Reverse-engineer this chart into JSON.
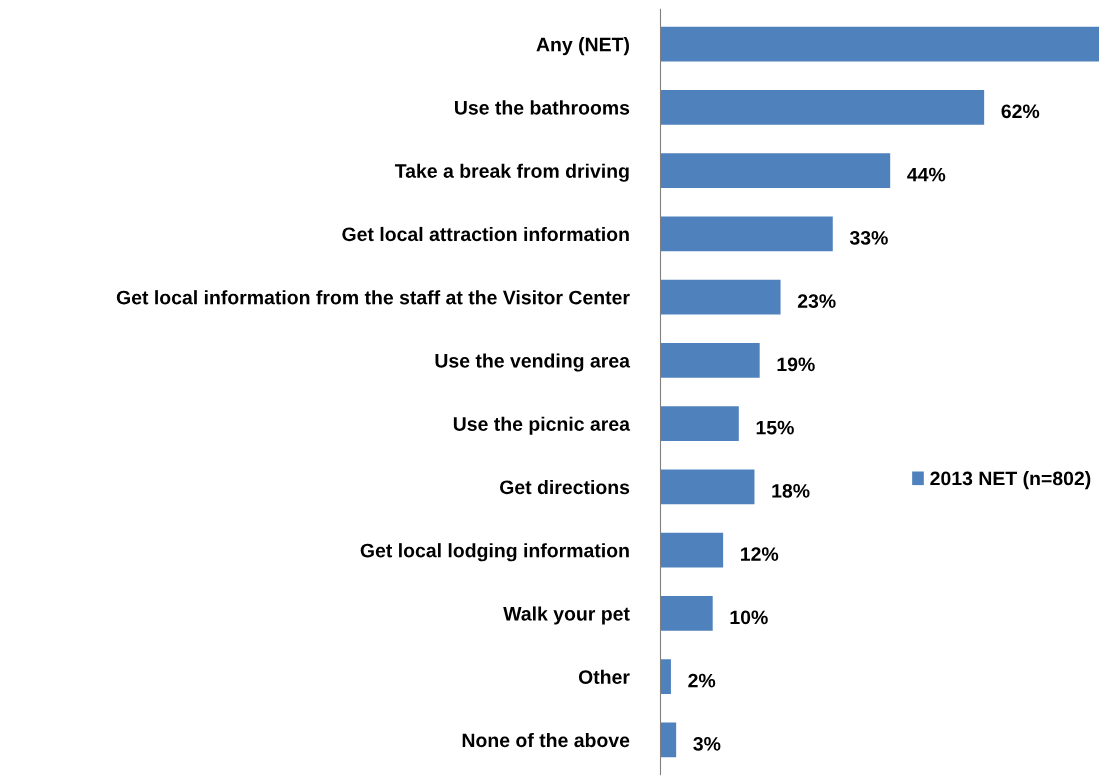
{
  "chart_data": {
    "type": "bar",
    "orientation": "horizontal",
    "categories": [
      "Any (NET)",
      "Use the bathrooms",
      "Take a break from driving",
      "Get local attraction information",
      "Get local information from the staff at the Visitor Center",
      "Use the vending area",
      "Use the picnic area",
      "Get directions",
      "Get local lodging information",
      "Walk your pet",
      "Other",
      "None of the above"
    ],
    "series": [
      {
        "name": "2013 NET (n=802)",
        "color": "#4f81bd",
        "values": [
          84,
          62,
          44,
          33,
          23,
          19,
          15,
          18,
          12,
          10,
          2,
          3
        ],
        "value_labels": [
          null,
          "62%",
          "44%",
          "33%",
          "23%",
          "19%",
          "15%",
          "18%",
          "12%",
          "10%",
          "2%",
          "3%"
        ]
      }
    ],
    "xlim": [
      0,
      84
    ],
    "legend": "right",
    "grid": false
  }
}
